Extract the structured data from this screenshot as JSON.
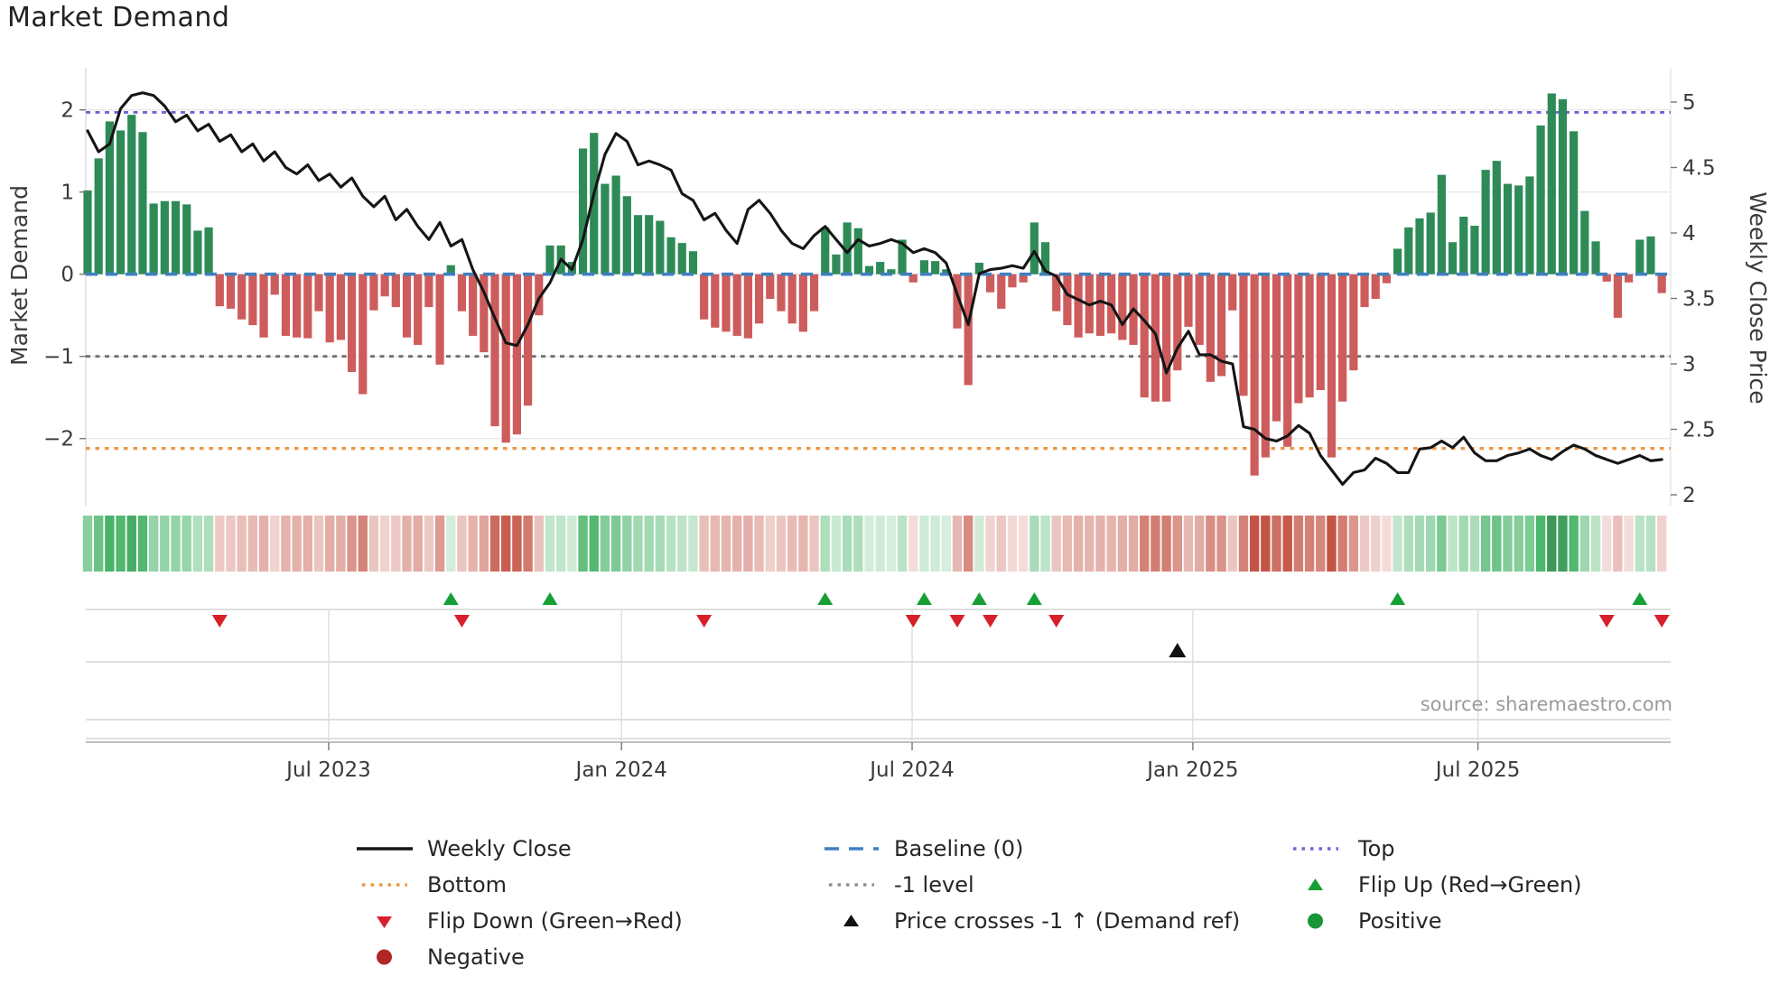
{
  "title": "Market Demand",
  "source": "source: sharemaestro.com",
  "chart_data": {
    "type": "bar+line",
    "title": "Market Demand",
    "ylabel_left": "Market Demand",
    "ylabel_right": "Weekly Close Price",
    "x_tick_labels": [
      "Jul 2023",
      "Jan 2024",
      "Jul 2024",
      "Jan 2025",
      "Jul 2025"
    ],
    "x_tick_weeks": [
      21.9,
      48.5,
      74.9,
      100.4,
      126.3
    ],
    "left_ticks": [
      2,
      1,
      0,
      -1,
      -2
    ],
    "left_tick_labels": [
      "2",
      "1",
      "0",
      "−1",
      "−2"
    ],
    "right_ticks": [
      5,
      4.5,
      4,
      3.5,
      3,
      2.5,
      2
    ],
    "right_tick_labels": [
      "5",
      "4.5",
      "4",
      "3.5",
      "3",
      "2.5",
      "2"
    ],
    "ylim_left": [
      -2.8,
      2.5
    ],
    "ylim_right": [
      1.95,
      5.25
    ],
    "baseline_level": 0,
    "top_level": 1.97,
    "minus1_level": -1,
    "bottom_level": -2.12,
    "grid": "horizontal",
    "colors": {
      "bar_positive": "#2e8b57",
      "bar_negative": "#cd5c5c",
      "price_line": "#151515",
      "baseline": "#3f80c0",
      "top": "#6e64d4",
      "bottom": "#ef9540",
      "minus1": "#6f6f6f",
      "flip_up": "#16a034",
      "flip_down": "#d8202c",
      "price_cross": "#111111",
      "positive_dot": "#1a9636",
      "negative_dot": "#b22626"
    },
    "demand": [
      1.02,
      1.41,
      1.86,
      1.75,
      1.94,
      1.73,
      0.86,
      0.89,
      0.89,
      0.85,
      0.53,
      0.57,
      -0.39,
      -0.42,
      -0.55,
      -0.62,
      -0.77,
      -0.25,
      -0.75,
      -0.77,
      -0.78,
      -0.45,
      -0.83,
      -0.8,
      -1.19,
      -1.46,
      -0.44,
      -0.27,
      -0.4,
      -0.77,
      -0.86,
      -0.4,
      -1.1,
      0.11,
      -0.45,
      -0.75,
      -0.95,
      -1.85,
      -2.05,
      -1.95,
      -1.6,
      -0.5,
      0.35,
      0.35,
      0.15,
      1.53,
      1.72,
      1.1,
      1.2,
      0.95,
      0.72,
      0.72,
      0.65,
      0.45,
      0.38,
      0.28,
      -0.55,
      -0.65,
      -0.7,
      -0.75,
      -0.78,
      -0.6,
      -0.3,
      -0.45,
      -0.6,
      -0.7,
      -0.45,
      0.57,
      0.24,
      0.63,
      0.56,
      0.1,
      0.15,
      0.06,
      0.42,
      -0.1,
      0.17,
      0.16,
      0.06,
      -0.66,
      -1.35,
      0.14,
      -0.22,
      -0.42,
      -0.16,
      -0.1,
      0.63,
      0.39,
      -0.45,
      -0.62,
      -0.77,
      -0.72,
      -0.75,
      -0.72,
      -0.8,
      -0.86,
      -1.5,
      -1.55,
      -1.55,
      -1.17,
      -0.64,
      -0.86,
      -1.31,
      -1.24,
      -0.44,
      -1.48,
      -2.45,
      -2.23,
      -1.79,
      -2.1,
      -1.57,
      -1.5,
      -1.41,
      -2.23,
      -1.55,
      -1.17,
      -0.4,
      -0.3,
      -0.11,
      0.31,
      0.57,
      0.68,
      0.75,
      1.21,
      0.39,
      0.7,
      0.59,
      1.27,
      1.38,
      1.1,
      1.08,
      1.19,
      1.81,
      2.2,
      2.13,
      1.74,
      0.77,
      0.4,
      -0.09,
      -0.53,
      -0.1,
      0.42,
      0.46,
      -0.23
    ],
    "price": [
      4.78,
      4.62,
      4.68,
      4.95,
      5.05,
      5.07,
      5.05,
      4.97,
      4.85,
      4.9,
      4.78,
      4.83,
      4.7,
      4.75,
      4.62,
      4.68,
      4.55,
      4.62,
      4.5,
      4.45,
      4.52,
      4.4,
      4.45,
      4.35,
      4.42,
      4.28,
      4.2,
      4.28,
      4.1,
      4.18,
      4.05,
      3.95,
      4.08,
      3.9,
      3.95,
      3.72,
      3.55,
      3.35,
      3.16,
      3.14,
      3.3,
      3.5,
      3.62,
      3.8,
      3.72,
      3.95,
      4.3,
      4.6,
      4.76,
      4.7,
      4.52,
      4.55,
      4.52,
      4.48,
      4.3,
      4.25,
      4.1,
      4.15,
      4.02,
      3.92,
      4.18,
      4.25,
      4.15,
      4.02,
      3.92,
      3.88,
      3.98,
      4.05,
      3.95,
      3.85,
      3.95,
      3.9,
      3.92,
      3.95,
      3.92,
      3.85,
      3.88,
      3.85,
      3.77,
      3.53,
      3.3,
      3.69,
      3.72,
      3.73,
      3.75,
      3.73,
      3.86,
      3.71,
      3.67,
      3.53,
      3.49,
      3.45,
      3.48,
      3.45,
      3.3,
      3.42,
      3.33,
      3.23,
      2.93,
      3.12,
      3.25,
      3.07,
      3.07,
      3.02,
      3.0,
      2.52,
      2.5,
      2.43,
      2.41,
      2.45,
      2.53,
      2.47,
      2.3,
      2.19,
      2.08,
      2.17,
      2.19,
      2.28,
      2.24,
      2.17,
      2.17,
      2.35,
      2.36,
      2.41,
      2.36,
      2.44,
      2.32,
      2.26,
      2.26,
      2.3,
      2.32,
      2.35,
      2.3,
      2.27,
      2.33,
      2.38,
      2.35,
      2.3,
      2.27,
      2.24,
      2.27,
      2.3,
      2.26,
      2.27
    ],
    "flip_up_weeks": [
      33,
      42,
      67,
      76,
      81,
      86,
      119,
      141
    ],
    "flip_down_weeks": [
      12,
      34,
      56,
      75,
      79,
      82,
      88,
      138,
      143
    ],
    "price_cross_week": 99
  },
  "legend": {
    "col1": [
      {
        "label": "Weekly Close"
      },
      {
        "label": "Bottom"
      },
      {
        "label": "Flip Down (Green→Red)"
      },
      {
        "label": "Negative"
      }
    ],
    "col2": [
      {
        "label": "Baseline (0)"
      },
      {
        "label": "-1 level"
      },
      {
        "label": "Price crosses -1 ↑ (Demand ref)"
      }
    ],
    "col3": [
      {
        "label": "Top"
      },
      {
        "label": "Flip Up (Red→Green)"
      },
      {
        "label": "Positive"
      }
    ]
  }
}
